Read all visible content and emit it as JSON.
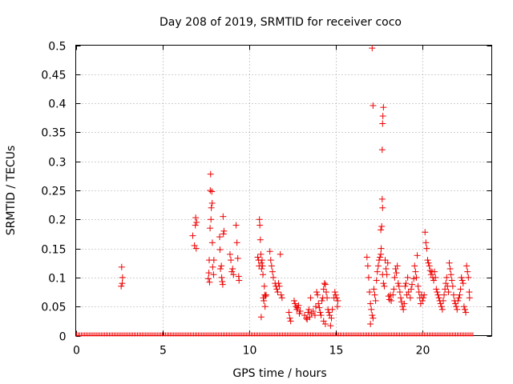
{
  "chart_data": {
    "type": "scatter",
    "title": "Day 208 of 2019, SRMTID for receiver coco",
    "xlabel": "GPS time / hours",
    "ylabel": "SRMTID / TECUs",
    "xlim": [
      0,
      24
    ],
    "ylim": [
      0,
      0.5
    ],
    "xticks": [
      0,
      5,
      10,
      15,
      20
    ],
    "yticks": [
      0,
      0.05,
      0.1,
      0.15,
      0.2,
      0.25,
      0.3,
      0.35,
      0.4,
      0.45,
      0.5
    ],
    "xtick_labels": [
      "0",
      "5",
      "10",
      "15",
      "20"
    ],
    "ytick_labels": [
      "0",
      "0.05",
      "0.1",
      "0.15",
      "0.2",
      "0.25",
      "0.3",
      "0.35",
      "0.4",
      "0.45",
      "0.5"
    ],
    "grid": true,
    "marker": "+",
    "color": "#ee0000",
    "series": [
      {
        "name": "SRMTID",
        "points": [
          [
            2.65,
            0.118
          ],
          [
            2.7,
            0.1
          ],
          [
            2.68,
            0.09
          ],
          [
            2.62,
            0.085
          ],
          [
            6.75,
            0.172
          ],
          [
            6.85,
            0.155
          ],
          [
            6.9,
            0.19
          ],
          [
            6.92,
            0.203
          ],
          [
            6.95,
            0.15
          ],
          [
            6.97,
            0.195
          ],
          [
            7.65,
            0.098
          ],
          [
            7.68,
            0.108
          ],
          [
            7.7,
            0.13
          ],
          [
            7.72,
            0.092
          ],
          [
            7.75,
            0.185
          ],
          [
            7.76,
            0.25
          ],
          [
            7.78,
            0.278
          ],
          [
            7.8,
            0.2
          ],
          [
            7.82,
            0.22
          ],
          [
            7.85,
            0.248
          ],
          [
            7.87,
            0.228
          ],
          [
            7.88,
            0.16
          ],
          [
            7.9,
            0.118
          ],
          [
            7.95,
            0.105
          ],
          [
            7.97,
            0.13
          ],
          [
            8.3,
            0.17
          ],
          [
            8.32,
            0.148
          ],
          [
            8.35,
            0.115
          ],
          [
            8.4,
            0.12
          ],
          [
            8.42,
            0.1
          ],
          [
            8.45,
            0.093
          ],
          [
            8.48,
            0.088
          ],
          [
            8.5,
            0.205
          ],
          [
            8.52,
            0.175
          ],
          [
            8.55,
            0.18
          ],
          [
            8.9,
            0.14
          ],
          [
            8.95,
            0.13
          ],
          [
            9.0,
            0.11
          ],
          [
            9.05,
            0.115
          ],
          [
            9.1,
            0.105
          ],
          [
            9.25,
            0.19
          ],
          [
            9.3,
            0.16
          ],
          [
            9.35,
            0.133
          ],
          [
            9.4,
            0.102
          ],
          [
            9.42,
            0.095
          ],
          [
            10.5,
            0.135
          ],
          [
            10.55,
            0.13
          ],
          [
            10.58,
            0.12
          ],
          [
            10.6,
            0.2
          ],
          [
            10.62,
            0.19
          ],
          [
            10.65,
            0.165
          ],
          [
            10.68,
            0.14
          ],
          [
            10.7,
            0.125
          ],
          [
            10.72,
            0.115
          ],
          [
            10.75,
            0.13
          ],
          [
            10.78,
            0.12
          ],
          [
            10.8,
            0.105
          ],
          [
            10.82,
            0.065
          ],
          [
            10.85,
            0.06
          ],
          [
            10.88,
            0.085
          ],
          [
            10.9,
            0.07
          ],
          [
            10.92,
            0.05
          ],
          [
            10.95,
            0.068
          ],
          [
            10.98,
            0.07
          ],
          [
            10.7,
            0.032
          ],
          [
            11.2,
            0.145
          ],
          [
            11.25,
            0.13
          ],
          [
            11.3,
            0.12
          ],
          [
            11.35,
            0.11
          ],
          [
            11.4,
            0.1
          ],
          [
            11.5,
            0.09
          ],
          [
            11.55,
            0.085
          ],
          [
            11.6,
            0.08
          ],
          [
            11.65,
            0.075
          ],
          [
            11.7,
            0.09
          ],
          [
            11.75,
            0.085
          ],
          [
            11.8,
            0.14
          ],
          [
            11.85,
            0.07
          ],
          [
            11.9,
            0.065
          ],
          [
            12.3,
            0.04
          ],
          [
            12.35,
            0.03
          ],
          [
            12.4,
            0.025
          ],
          [
            12.6,
            0.06
          ],
          [
            12.65,
            0.055
          ],
          [
            12.7,
            0.05
          ],
          [
            12.75,
            0.045
          ],
          [
            12.8,
            0.048
          ],
          [
            12.85,
            0.052
          ],
          [
            12.9,
            0.038
          ],
          [
            12.95,
            0.042
          ],
          [
            13.2,
            0.035
          ],
          [
            13.3,
            0.03
          ],
          [
            13.35,
            0.028
          ],
          [
            13.4,
            0.04
          ],
          [
            13.45,
            0.045
          ],
          [
            13.5,
            0.032
          ],
          [
            13.55,
            0.065
          ],
          [
            13.6,
            0.038
          ],
          [
            13.7,
            0.042
          ],
          [
            13.8,
            0.035
          ],
          [
            13.85,
            0.05
          ],
          [
            13.9,
            0.075
          ],
          [
            13.95,
            0.07
          ],
          [
            14.0,
            0.055
          ],
          [
            14.05,
            0.048
          ],
          [
            14.1,
            0.04
          ],
          [
            14.15,
            0.035
          ],
          [
            14.2,
            0.06
          ],
          [
            14.25,
            0.065
          ],
          [
            14.3,
            0.08
          ],
          [
            14.35,
            0.09
          ],
          [
            14.4,
            0.088
          ],
          [
            14.45,
            0.075
          ],
          [
            14.5,
            0.065
          ],
          [
            14.55,
            0.045
          ],
          [
            14.6,
            0.04
          ],
          [
            14.65,
            0.035
          ],
          [
            14.7,
            0.017
          ],
          [
            14.75,
            0.03
          ],
          [
            14.8,
            0.045
          ],
          [
            14.9,
            0.065
          ],
          [
            14.95,
            0.075
          ],
          [
            15.0,
            0.07
          ],
          [
            15.05,
            0.065
          ],
          [
            15.1,
            0.05
          ],
          [
            15.12,
            0.06
          ],
          [
            14.3,
            0.025
          ],
          [
            14.4,
            0.02
          ],
          [
            16.8,
            0.135
          ],
          [
            16.85,
            0.12
          ],
          [
            16.9,
            0.1
          ],
          [
            16.95,
            0.075
          ],
          [
            17.0,
            0.055
          ],
          [
            17.05,
            0.045
          ],
          [
            17.1,
            0.035
          ],
          [
            17.15,
            0.03
          ],
          [
            17.0,
            0.02
          ],
          [
            17.1,
            0.495
          ],
          [
            17.15,
            0.396
          ],
          [
            17.2,
            0.08
          ],
          [
            17.25,
            0.07
          ],
          [
            17.3,
            0.06
          ],
          [
            17.35,
            0.095
          ],
          [
            17.4,
            0.11
          ],
          [
            17.45,
            0.12
          ],
          [
            17.5,
            0.13
          ],
          [
            17.55,
            0.135
          ],
          [
            17.6,
            0.14
          ],
          [
            17.62,
            0.15
          ],
          [
            17.6,
            0.182
          ],
          [
            17.65,
            0.188
          ],
          [
            17.68,
            0.235
          ],
          [
            17.7,
            0.22
          ],
          [
            17.68,
            0.32
          ],
          [
            17.7,
            0.365
          ],
          [
            17.72,
            0.378
          ],
          [
            17.75,
            0.393
          ],
          [
            17.7,
            0.105
          ],
          [
            17.75,
            0.09
          ],
          [
            17.8,
            0.085
          ],
          [
            17.85,
            0.13
          ],
          [
            17.9,
            0.115
          ],
          [
            17.95,
            0.105
          ],
          [
            18.0,
            0.125
          ],
          [
            18.05,
            0.068
          ],
          [
            18.1,
            0.062
          ],
          [
            18.15,
            0.07
          ],
          [
            18.2,
            0.06
          ],
          [
            18.3,
            0.07
          ],
          [
            18.35,
            0.08
          ],
          [
            18.4,
            0.1
          ],
          [
            18.45,
            0.115
          ],
          [
            18.5,
            0.108
          ],
          [
            18.55,
            0.12
          ],
          [
            18.6,
            0.09
          ],
          [
            18.65,
            0.085
          ],
          [
            18.7,
            0.075
          ],
          [
            18.75,
            0.065
          ],
          [
            18.8,
            0.058
          ],
          [
            18.85,
            0.05
          ],
          [
            18.9,
            0.045
          ],
          [
            18.95,
            0.055
          ],
          [
            19.0,
            0.085
          ],
          [
            19.05,
            0.09
          ],
          [
            19.1,
            0.07
          ],
          [
            19.15,
            0.1
          ],
          [
            19.2,
            0.075
          ],
          [
            19.3,
            0.065
          ],
          [
            19.35,
            0.08
          ],
          [
            19.4,
            0.088
          ],
          [
            19.5,
            0.098
          ],
          [
            19.55,
            0.12
          ],
          [
            19.6,
            0.11
          ],
          [
            19.65,
            0.1
          ],
          [
            19.7,
            0.138
          ],
          [
            19.75,
            0.085
          ],
          [
            19.8,
            0.075
          ],
          [
            19.85,
            0.065
          ],
          [
            19.9,
            0.055
          ],
          [
            19.95,
            0.07
          ],
          [
            20.0,
            0.06
          ],
          [
            20.05,
            0.065
          ],
          [
            20.1,
            0.07
          ],
          [
            20.15,
            0.178
          ],
          [
            20.2,
            0.16
          ],
          [
            20.25,
            0.15
          ],
          [
            20.3,
            0.13
          ],
          [
            20.35,
            0.125
          ],
          [
            20.4,
            0.12
          ],
          [
            20.45,
            0.112
          ],
          [
            20.5,
            0.105
          ],
          [
            20.55,
            0.11
          ],
          [
            20.6,
            0.1
          ],
          [
            20.65,
            0.095
          ],
          [
            20.7,
            0.11
          ],
          [
            20.75,
            0.1
          ],
          [
            20.8,
            0.08
          ],
          [
            20.85,
            0.075
          ],
          [
            20.9,
            0.07
          ],
          [
            20.95,
            0.065
          ],
          [
            21.0,
            0.06
          ],
          [
            21.05,
            0.055
          ],
          [
            21.1,
            0.05
          ],
          [
            21.15,
            0.045
          ],
          [
            21.2,
            0.06
          ],
          [
            21.25,
            0.07
          ],
          [
            21.3,
            0.08
          ],
          [
            21.35,
            0.09
          ],
          [
            21.4,
            0.1
          ],
          [
            21.45,
            0.085
          ],
          [
            21.5,
            0.075
          ],
          [
            21.55,
            0.125
          ],
          [
            21.6,
            0.115
          ],
          [
            21.65,
            0.105
          ],
          [
            21.7,
            0.095
          ],
          [
            21.75,
            0.085
          ],
          [
            21.8,
            0.07
          ],
          [
            21.85,
            0.06
          ],
          [
            21.9,
            0.055
          ],
          [
            21.95,
            0.05
          ],
          [
            22.0,
            0.045
          ],
          [
            22.05,
            0.06
          ],
          [
            22.1,
            0.065
          ],
          [
            22.15,
            0.07
          ],
          [
            22.2,
            0.08
          ],
          [
            22.25,
            0.1
          ],
          [
            22.3,
            0.095
          ],
          [
            22.35,
            0.09
          ],
          [
            22.4,
            0.05
          ],
          [
            22.45,
            0.045
          ],
          [
            22.5,
            0.04
          ],
          [
            22.55,
            0.12
          ],
          [
            22.6,
            0.11
          ],
          [
            22.65,
            0.1
          ],
          [
            22.7,
            0.075
          ],
          [
            22.72,
            0.065
          ]
        ]
      },
      {
        "name": "zero baseline",
        "x_range": [
          0.05,
          22.95
        ],
        "y": 0
      }
    ]
  }
}
